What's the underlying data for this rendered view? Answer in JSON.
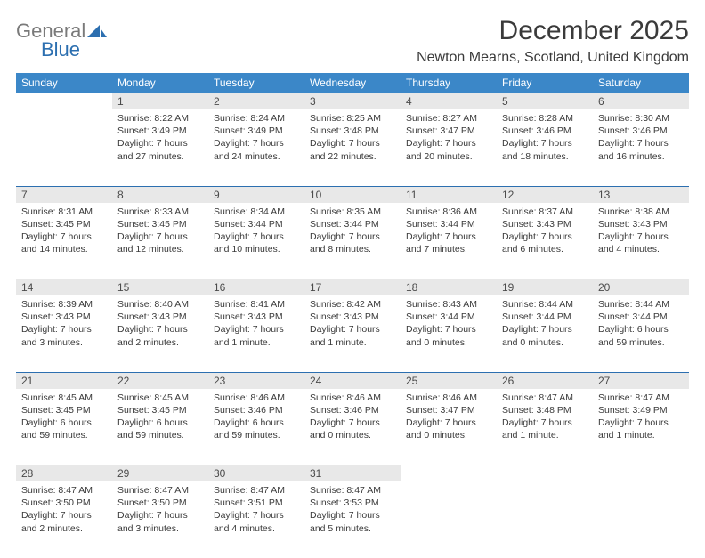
{
  "logo": {
    "line1": "General",
    "line2": "Blue"
  },
  "title": "December 2025",
  "location": "Newton Mearns, Scotland, United Kingdom",
  "colors": {
    "header_bg": "#3b87c8",
    "header_text": "#ffffff",
    "daynum_bg": "#e8e8e8",
    "rule": "#2c6fb0",
    "text": "#3a3a3a",
    "logo_general": "#7a7a7a",
    "logo_blue": "#2c6fb0"
  },
  "typography": {
    "title_fontsize": 30,
    "location_fontsize": 16,
    "dayheader_fontsize": 12,
    "daynum_fontsize": 12,
    "cell_fontsize": 10.5
  },
  "day_headers": [
    "Sunday",
    "Monday",
    "Tuesday",
    "Wednesday",
    "Thursday",
    "Friday",
    "Saturday"
  ],
  "weeks": [
    {
      "nums": [
        "",
        "1",
        "2",
        "3",
        "4",
        "5",
        "6"
      ],
      "cells": [
        "",
        "Sunrise: 8:22 AM\nSunset: 3:49 PM\nDaylight: 7 hours and 27 minutes.",
        "Sunrise: 8:24 AM\nSunset: 3:49 PM\nDaylight: 7 hours and 24 minutes.",
        "Sunrise: 8:25 AM\nSunset: 3:48 PM\nDaylight: 7 hours and 22 minutes.",
        "Sunrise: 8:27 AM\nSunset: 3:47 PM\nDaylight: 7 hours and 20 minutes.",
        "Sunrise: 8:28 AM\nSunset: 3:46 PM\nDaylight: 7 hours and 18 minutes.",
        "Sunrise: 8:30 AM\nSunset: 3:46 PM\nDaylight: 7 hours and 16 minutes."
      ]
    },
    {
      "nums": [
        "7",
        "8",
        "9",
        "10",
        "11",
        "12",
        "13"
      ],
      "cells": [
        "Sunrise: 8:31 AM\nSunset: 3:45 PM\nDaylight: 7 hours and 14 minutes.",
        "Sunrise: 8:33 AM\nSunset: 3:45 PM\nDaylight: 7 hours and 12 minutes.",
        "Sunrise: 8:34 AM\nSunset: 3:44 PM\nDaylight: 7 hours and 10 minutes.",
        "Sunrise: 8:35 AM\nSunset: 3:44 PM\nDaylight: 7 hours and 8 minutes.",
        "Sunrise: 8:36 AM\nSunset: 3:44 PM\nDaylight: 7 hours and 7 minutes.",
        "Sunrise: 8:37 AM\nSunset: 3:43 PM\nDaylight: 7 hours and 6 minutes.",
        "Sunrise: 8:38 AM\nSunset: 3:43 PM\nDaylight: 7 hours and 4 minutes."
      ]
    },
    {
      "nums": [
        "14",
        "15",
        "16",
        "17",
        "18",
        "19",
        "20"
      ],
      "cells": [
        "Sunrise: 8:39 AM\nSunset: 3:43 PM\nDaylight: 7 hours and 3 minutes.",
        "Sunrise: 8:40 AM\nSunset: 3:43 PM\nDaylight: 7 hours and 2 minutes.",
        "Sunrise: 8:41 AM\nSunset: 3:43 PM\nDaylight: 7 hours and 1 minute.",
        "Sunrise: 8:42 AM\nSunset: 3:43 PM\nDaylight: 7 hours and 1 minute.",
        "Sunrise: 8:43 AM\nSunset: 3:44 PM\nDaylight: 7 hours and 0 minutes.",
        "Sunrise: 8:44 AM\nSunset: 3:44 PM\nDaylight: 7 hours and 0 minutes.",
        "Sunrise: 8:44 AM\nSunset: 3:44 PM\nDaylight: 6 hours and 59 minutes."
      ]
    },
    {
      "nums": [
        "21",
        "22",
        "23",
        "24",
        "25",
        "26",
        "27"
      ],
      "cells": [
        "Sunrise: 8:45 AM\nSunset: 3:45 PM\nDaylight: 6 hours and 59 minutes.",
        "Sunrise: 8:45 AM\nSunset: 3:45 PM\nDaylight: 6 hours and 59 minutes.",
        "Sunrise: 8:46 AM\nSunset: 3:46 PM\nDaylight: 6 hours and 59 minutes.",
        "Sunrise: 8:46 AM\nSunset: 3:46 PM\nDaylight: 7 hours and 0 minutes.",
        "Sunrise: 8:46 AM\nSunset: 3:47 PM\nDaylight: 7 hours and 0 minutes.",
        "Sunrise: 8:47 AM\nSunset: 3:48 PM\nDaylight: 7 hours and 1 minute.",
        "Sunrise: 8:47 AM\nSunset: 3:49 PM\nDaylight: 7 hours and 1 minute."
      ]
    },
    {
      "nums": [
        "28",
        "29",
        "30",
        "31",
        "",
        "",
        ""
      ],
      "cells": [
        "Sunrise: 8:47 AM\nSunset: 3:50 PM\nDaylight: 7 hours and 2 minutes.",
        "Sunrise: 8:47 AM\nSunset: 3:50 PM\nDaylight: 7 hours and 3 minutes.",
        "Sunrise: 8:47 AM\nSunset: 3:51 PM\nDaylight: 7 hours and 4 minutes.",
        "Sunrise: 8:47 AM\nSunset: 3:53 PM\nDaylight: 7 hours and 5 minutes.",
        "",
        "",
        ""
      ]
    }
  ]
}
